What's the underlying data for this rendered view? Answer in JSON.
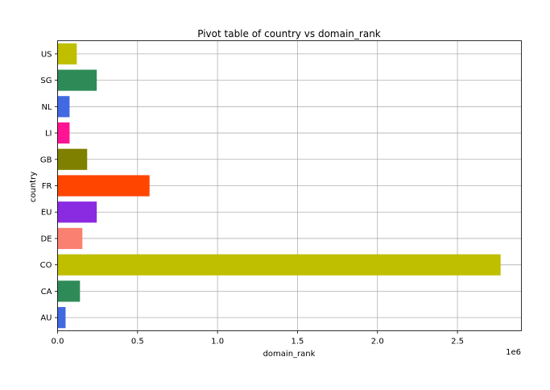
{
  "chart_data": {
    "type": "bar",
    "orientation": "horizontal",
    "title": "Pivot table of country vs domain_rank",
    "xlabel": "domain_rank",
    "ylabel": "country",
    "x_scale_label": "1e6",
    "xlim": [
      0,
      2900000
    ],
    "x_ticks": [
      0,
      500000,
      1000000,
      1500000,
      2000000,
      2500000
    ],
    "x_tick_labels": [
      "0.0",
      "0.5",
      "1.0",
      "1.5",
      "2.0",
      "2.5"
    ],
    "grid": true,
    "categories": [
      "AU",
      "CA",
      "CO",
      "DE",
      "EU",
      "FR",
      "GB",
      "LI",
      "NL",
      "SG",
      "US"
    ],
    "values": [
      50000,
      140000,
      2770000,
      155000,
      245000,
      575000,
      185000,
      75000,
      75000,
      245000,
      120000
    ],
    "colors": [
      "#4169e1",
      "#2e8b57",
      "#bfbf00",
      "#fa8072",
      "#8a2be2",
      "#ff4500",
      "#808000",
      "#ff1493",
      "#4169e1",
      "#2e8b57",
      "#bfbf00"
    ]
  }
}
